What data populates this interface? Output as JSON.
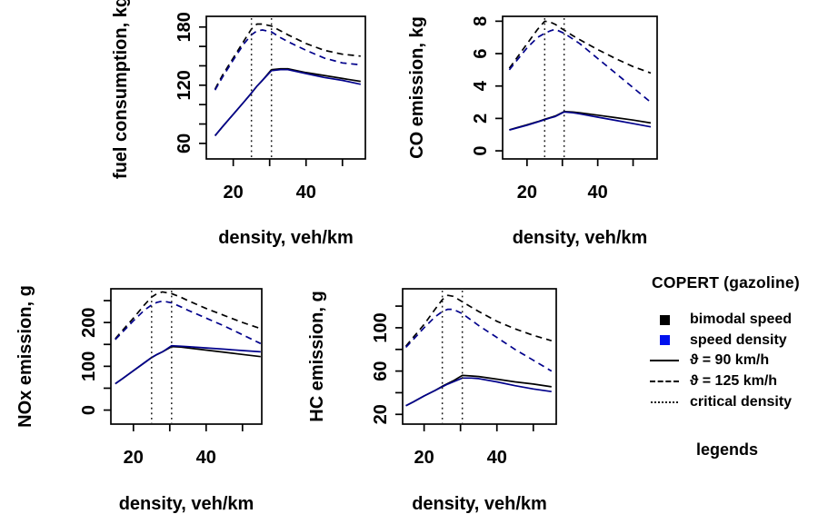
{
  "figure": {
    "background": "#ffffff"
  },
  "colors": {
    "black": "#000000",
    "navy_line": "#00008B",
    "legend_blue": "#0011EE",
    "dotted_line": "#1a1a1a"
  },
  "legend": {
    "title": "COPERT (gazoline)",
    "footer": "legends",
    "items": [
      {
        "label": "bimodal speed",
        "marker": "square",
        "color": "#000000"
      },
      {
        "label": "speed density",
        "marker": "square",
        "color": "#0011EE"
      },
      {
        "label": "ϑ = 90 km/h",
        "marker": "solid-line",
        "color": "#000000"
      },
      {
        "label": "ϑ = 125 km/h",
        "marker": "dashed-line",
        "color": "#000000"
      },
      {
        "label": "critical density",
        "marker": "dotted-line",
        "color": "#1a1a1a"
      }
    ]
  },
  "chart_data": [
    {
      "type": "line",
      "key": "fuel-consumption",
      "ylabel": "fuel consumption, kg",
      "xlabel": "density, veh/km",
      "xlim": [
        12.6,
        56.3
      ],
      "ylim": [
        44,
        191
      ],
      "xticks": [
        20,
        30,
        40,
        50
      ],
      "xtick_labels": [
        "20",
        "",
        "40",
        ""
      ],
      "yticks": [
        60,
        80,
        100,
        120,
        140,
        160,
        180
      ],
      "ytick_labels": [
        "60",
        "",
        "",
        "120",
        "",
        "",
        "180"
      ],
      "critical_densities": [
        25,
        30.5
      ],
      "grid": false,
      "x": [
        15,
        17,
        20,
        23,
        25,
        26.5,
        28,
        30.5,
        33,
        35,
        40,
        45,
        50,
        55
      ],
      "series": [
        {
          "name": "bimodal speed ϑ=90 km/h",
          "style": "solid",
          "color": "#000000",
          "values": [
            68,
            77,
            90,
            103,
            112,
            119,
            125,
            136,
            137,
            137,
            133,
            130,
            127,
            124
          ]
        },
        {
          "name": "speed density ϑ=90 km/h",
          "style": "solid",
          "color": "#00008B",
          "values": [
            68,
            77,
            90,
            103,
            112,
            119,
            125,
            135,
            136,
            136,
            132,
            128,
            125,
            121
          ]
        },
        {
          "name": "bimodal speed ϑ=125 km/h",
          "style": "dashed",
          "color": "#000000",
          "values": [
            116,
            130,
            148,
            166,
            178,
            183,
            183,
            181,
            176,
            172,
            163,
            156,
            152,
            150
          ]
        },
        {
          "name": "speed density ϑ=125 km/h",
          "style": "dashed",
          "color": "#00008B",
          "values": [
            115,
            128,
            146,
            163,
            172,
            176,
            177,
            175,
            169,
            165,
            156,
            148,
            143,
            141
          ]
        }
      ]
    },
    {
      "type": "line",
      "key": "co-emission",
      "ylabel": "CO emission, kg",
      "xlabel": "density, veh/km",
      "xlim": [
        13.1,
        56.8
      ],
      "ylim": [
        -0.5,
        8.3
      ],
      "xticks": [
        20,
        30,
        40,
        50
      ],
      "xtick_labels": [
        "20",
        "",
        "40",
        ""
      ],
      "yticks": [
        0,
        2,
        4,
        6,
        8
      ],
      "ytick_labels": [
        "0",
        "2",
        "4",
        "6",
        "8"
      ],
      "critical_densities": [
        25,
        30.5
      ],
      "grid": false,
      "x": [
        15,
        17,
        20,
        23,
        25,
        26.5,
        28,
        30.5,
        33,
        35,
        40,
        45,
        50,
        55
      ],
      "series": [
        {
          "name": "bimodal speed ϑ=90 km/h",
          "style": "solid",
          "color": "#000000",
          "values": [
            1.3,
            1.42,
            1.6,
            1.8,
            1.95,
            2.05,
            2.15,
            2.42,
            2.4,
            2.35,
            2.2,
            2.05,
            1.9,
            1.72
          ]
        },
        {
          "name": "speed density ϑ=90 km/h",
          "style": "solid",
          "color": "#00008B",
          "values": [
            1.28,
            1.4,
            1.58,
            1.78,
            1.92,
            2.02,
            2.12,
            2.4,
            2.35,
            2.28,
            2.08,
            1.88,
            1.68,
            1.48
          ]
        },
        {
          "name": "bimodal speed ϑ=125 km/h",
          "style": "dashed",
          "color": "#000000",
          "values": [
            5.1,
            5.7,
            6.6,
            7.5,
            8.0,
            7.95,
            7.8,
            7.45,
            7.1,
            6.85,
            6.25,
            5.7,
            5.2,
            4.8
          ]
        },
        {
          "name": "speed density ϑ=125 km/h",
          "style": "dashed",
          "color": "#00008B",
          "values": [
            5.0,
            5.55,
            6.35,
            7.0,
            7.25,
            7.4,
            7.5,
            7.25,
            6.9,
            6.6,
            5.7,
            4.8,
            3.9,
            3.0
          ]
        }
      ]
    },
    {
      "type": "line",
      "key": "nox-emission",
      "ylabel": "NOx emission, g",
      "xlabel": "density, veh/km",
      "xlim": [
        13.8,
        55.3
      ],
      "ylim": [
        -32,
        277
      ],
      "xticks": [
        20,
        30,
        40,
        50
      ],
      "xtick_labels": [
        "20",
        "",
        "40",
        ""
      ],
      "yticks": [
        0,
        50,
        100,
        150,
        200,
        250
      ],
      "ytick_labels": [
        "0",
        "",
        "100",
        "",
        "200",
        ""
      ],
      "critical_densities": [
        25,
        30.5
      ],
      "grid": false,
      "x": [
        15,
        17,
        20,
        23,
        25,
        26.5,
        28,
        30.5,
        33,
        35,
        40,
        45,
        50,
        55
      ],
      "series": [
        {
          "name": "bimodal speed ϑ=90 km/h",
          "style": "solid",
          "color": "#000000",
          "values": [
            60,
            72,
            90,
            108,
            120,
            127,
            133,
            145,
            144,
            142,
            137,
            132,
            127,
            122
          ]
        },
        {
          "name": "speed density ϑ=90 km/h",
          "style": "solid",
          "color": "#00008B",
          "values": [
            60,
            72,
            90,
            108,
            120,
            127,
            133,
            147,
            146,
            145,
            142,
            139,
            136,
            133
          ]
        },
        {
          "name": "bimodal speed ϑ=125 km/h",
          "style": "dashed",
          "color": "#000000",
          "values": [
            163,
            182,
            210,
            240,
            258,
            266,
            270,
            266,
            258,
            250,
            232,
            216,
            200,
            186
          ]
        },
        {
          "name": "speed density ϑ=125 km/h",
          "style": "dashed",
          "color": "#00008B",
          "values": [
            161,
            178,
            204,
            228,
            240,
            246,
            249,
            245,
            236,
            228,
            210,
            192,
            172,
            152
          ]
        }
      ]
    },
    {
      "type": "line",
      "key": "hc-emission",
      "ylabel": "HC emission, g",
      "xlabel": "density, veh/km",
      "xlim": [
        14.1,
        56.3
      ],
      "ylim": [
        11,
        136
      ],
      "xticks": [
        20,
        30,
        40,
        50
      ],
      "xtick_labels": [
        "20",
        "",
        "40",
        ""
      ],
      "yticks": [
        20,
        40,
        60,
        80,
        100,
        120
      ],
      "ytick_labels": [
        "20",
        "",
        "60",
        "",
        "100",
        ""
      ],
      "critical_densities": [
        25,
        30.5
      ],
      "grid": false,
      "x": [
        15,
        17,
        20,
        23,
        25,
        26.5,
        28,
        30.5,
        33,
        35,
        40,
        45,
        50,
        55
      ],
      "series": [
        {
          "name": "bimodal speed ϑ=90 km/h",
          "style": "solid",
          "color": "#000000",
          "values": [
            28,
            31.5,
            37,
            42,
            46,
            48.5,
            51,
            56,
            55.5,
            55,
            52.5,
            50,
            48,
            45.5
          ]
        },
        {
          "name": "speed density ϑ=90 km/h",
          "style": "solid",
          "color": "#00008B",
          "values": [
            28,
            31.5,
            37,
            42,
            45.5,
            48,
            50,
            53.5,
            53.5,
            53,
            50,
            46.5,
            43.5,
            41
          ]
        },
        {
          "name": "bimodal speed ϑ=125 km/h",
          "style": "dashed",
          "color": "#000000",
          "values": [
            83,
            91,
            103,
            117,
            126,
            130,
            129,
            124,
            119,
            115,
            106,
            99,
            93,
            88
          ]
        },
        {
          "name": "speed density ϑ=125 km/h",
          "style": "dashed",
          "color": "#00008B",
          "values": [
            82,
            89,
            100,
            110,
            115,
            117,
            117,
            113,
            107,
            102,
            91,
            80,
            70,
            60
          ]
        }
      ]
    }
  ]
}
